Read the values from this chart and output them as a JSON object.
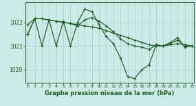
{
  "title": "Graphe pression niveau de la mer (hPa)",
  "bg_color": "#cceae8",
  "grid_color": "#aad4d0",
  "line_color": "#1a5c1a",
  "xlim": [
    -0.3,
    23.3
  ],
  "ylim": [
    1019.45,
    1022.85
  ],
  "yticks": [
    1020,
    1021,
    1022
  ],
  "xticks": [
    0,
    1,
    2,
    3,
    4,
    5,
    6,
    7,
    8,
    9,
    10,
    11,
    12,
    13,
    14,
    15,
    16,
    17,
    18,
    19,
    20,
    21,
    22,
    23
  ],
  "series_osc": [
    1021.5,
    1022.15,
    1021.0,
    1022.1,
    1021.0,
    1022.05,
    1021.0,
    1022.0,
    1022.55,
    1022.45,
    1021.9,
    1021.4,
    1021.1,
    1020.5,
    1019.7,
    1019.63,
    1020.0,
    1020.2,
    1021.05,
    1021.0,
    1021.15,
    1021.35,
    1020.95,
    1021.0
  ],
  "series_smooth1": [
    1021.5,
    1022.15,
    1022.15,
    1022.1,
    1022.05,
    1022.0,
    1021.95,
    1021.85,
    1022.1,
    1022.2,
    1022.05,
    1021.85,
    1021.6,
    1021.3,
    1021.1,
    1021.0,
    1020.95,
    1020.85,
    1021.05,
    1021.0,
    1021.1,
    1021.25,
    1021.0,
    1021.0
  ],
  "series_trend": [
    1021.9,
    1022.15,
    1022.15,
    1022.1,
    1022.05,
    1022.0,
    1021.95,
    1021.9,
    1021.85,
    1021.8,
    1021.75,
    1021.65,
    1021.55,
    1021.45,
    1021.35,
    1021.25,
    1021.15,
    1021.05,
    1021.0,
    1021.0,
    1021.05,
    1021.1,
    1021.05,
    1021.0
  ]
}
